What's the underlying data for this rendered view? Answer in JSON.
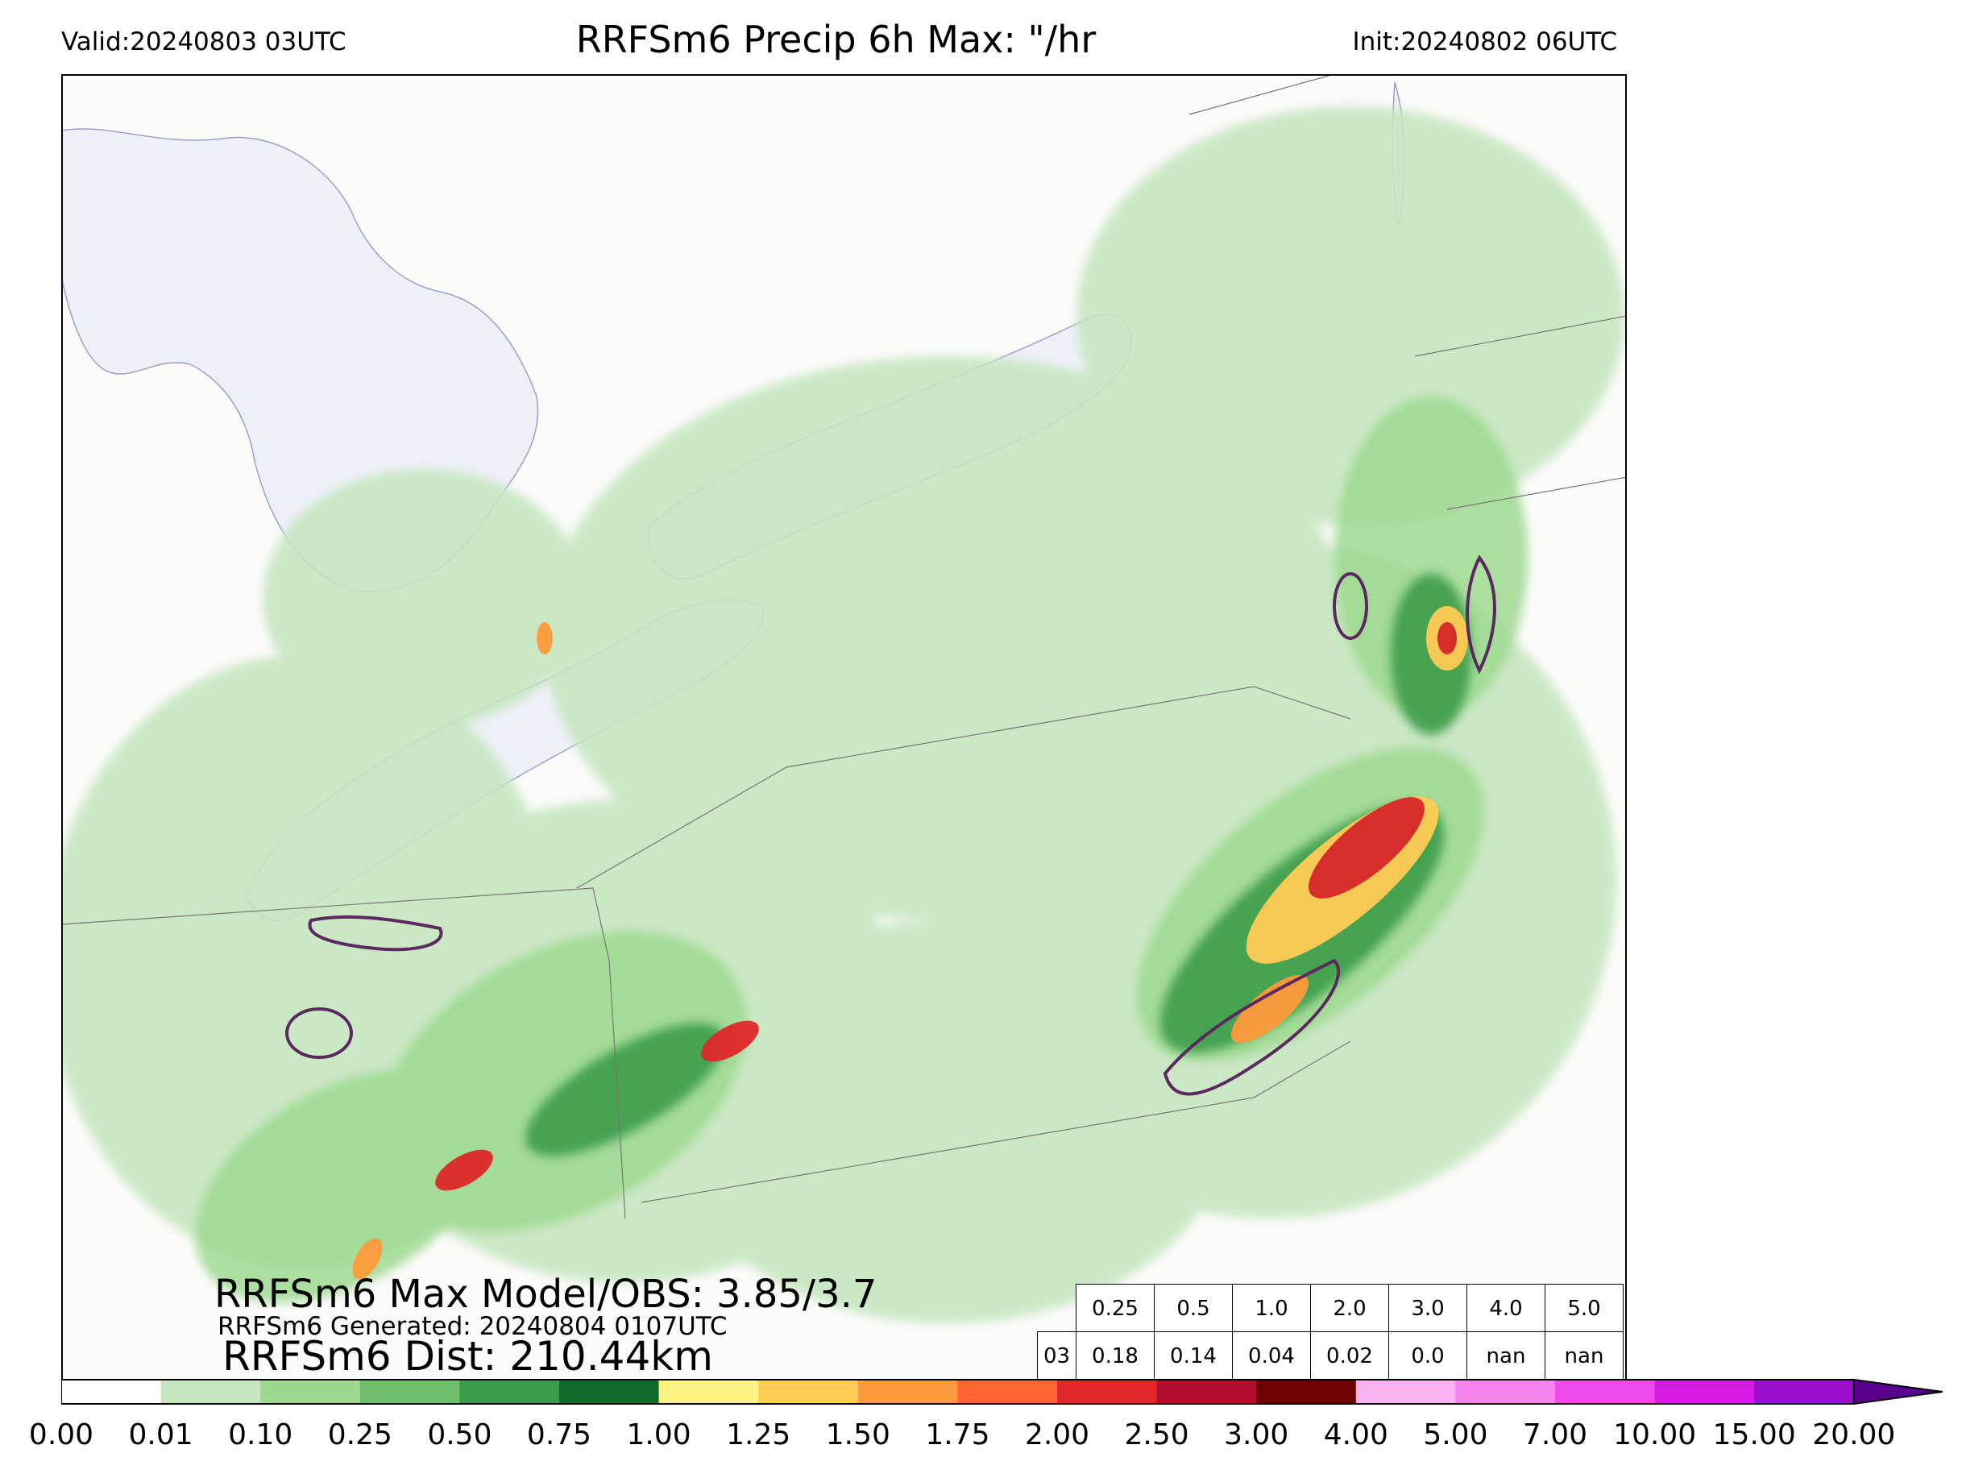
{
  "header": {
    "valid": "Valid:20240803 03UTC",
    "title": "RRFSm6 Precip 6h Max: \"/hr",
    "init": "Init:20240802 06UTC"
  },
  "stats": {
    "max_model_obs": "RRFSm6 Max Model/OBS: 3.85/3.7",
    "generated": "RRFSm6 Generated: 20240804 0107UTC",
    "dist": "RRFSm6 Dist: 210.44km"
  },
  "threshold_table": {
    "headers": [
      "0.25",
      "0.5",
      "1.0",
      "2.0",
      "3.0",
      "4.0",
      "5.0"
    ],
    "row_label": "03",
    "values": [
      "0.18",
      "0.14",
      "0.04",
      "0.02",
      "0.0",
      "nan",
      "nan"
    ]
  },
  "colorbar": {
    "ticks": [
      "0.00",
      "0.01",
      "0.10",
      "0.25",
      "0.50",
      "0.75",
      "1.00",
      "1.25",
      "1.50",
      "1.75",
      "2.00",
      "2.50",
      "3.00",
      "4.00",
      "5.00",
      "7.00",
      "10.00",
      "15.00",
      "20.00"
    ],
    "colors": [
      "#ffffff",
      "#c6e6c0",
      "#9dd88f",
      "#6fbf6a",
      "#3a9c4a",
      "#0f6b2a",
      "#fff384",
      "#ffcc55",
      "#ff9a3c",
      "#ff6633",
      "#e0272a",
      "#b10e2e",
      "#6e0000",
      "#f9b2f0",
      "#f585ee",
      "#f04aea",
      "#d41be0",
      "#9b10cc"
    ],
    "extend_color": "#5a0090"
  }
}
